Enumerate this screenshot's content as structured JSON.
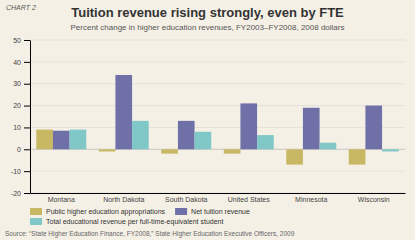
{
  "chart_data": {
    "type": "bar",
    "title": "Tuition revenue rising strongly, even by FTE",
    "subtitle": "Percent change in higher education revenues, FY2003–FY2008, 2008 dollars",
    "annotations": [
      "CHART 2",
      "Source: “State Higher Education Finance, FY2008,” State Higher Education Executive Officers, 2009"
    ],
    "categories": [
      "Montana",
      "North Dakota",
      "South Dakota",
      "United States",
      "Minnesota",
      "Wisconsin"
    ],
    "series": [
      {
        "name": "Public higher education appropriations",
        "color": "#c8b864",
        "values": [
          9,
          -1,
          -2,
          -2,
          -7,
          -7
        ]
      },
      {
        "name": "Net tuition revenue",
        "color": "#7070a8",
        "values": [
          8.5,
          34,
          13,
          21,
          19,
          20
        ]
      },
      {
        "name": "Total educational revenue per full-time-equivalent student",
        "color": "#80c8c8",
        "values": [
          9,
          13,
          8,
          6.5,
          3,
          -1
        ]
      }
    ],
    "ylim": [
      -20,
      50
    ],
    "yticks": [
      -20,
      -10,
      0,
      10,
      20,
      30,
      40,
      50
    ],
    "grid": true,
    "legend": "bottom"
  }
}
